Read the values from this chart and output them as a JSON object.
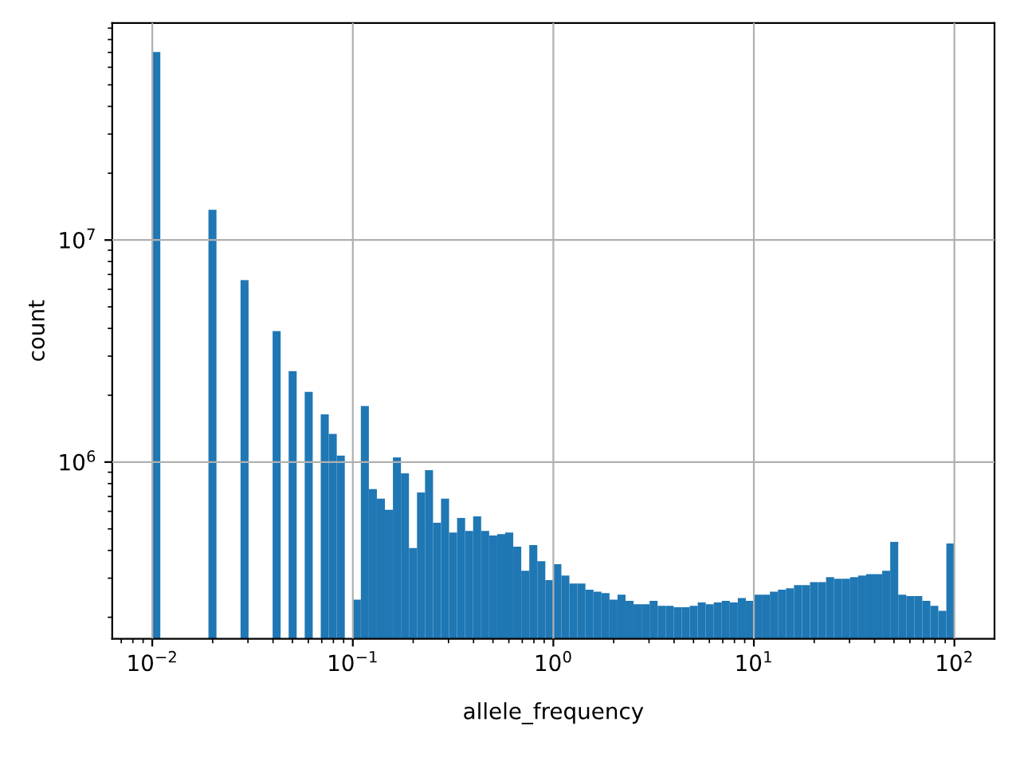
{
  "chart_data": {
    "type": "histogram",
    "xlabel": "allele_frequency",
    "ylabel": "count",
    "color": "#1f77b4",
    "log": "xy",
    "grid": true,
    "bins": [
      0.01,
      0.010965,
      0.012023,
      0.013183,
      0.014454,
      0.015849,
      0.017378,
      0.019055,
      0.020893,
      0.022909,
      0.025119,
      0.027542,
      0.0302,
      0.033113,
      0.036308,
      0.039811,
      0.043652,
      0.047863,
      0.052481,
      0.057544,
      0.063096,
      0.069183,
      0.075858,
      0.083176,
      0.091201,
      0.1,
      0.10965,
      0.12023,
      0.13183,
      0.14454,
      0.15849,
      0.17378,
      0.19055,
      0.20893,
      0.22909,
      0.25119,
      0.27542,
      0.302,
      0.33113,
      0.36308,
      0.39811,
      0.43652,
      0.47863,
      0.52481,
      0.57544,
      0.63096,
      0.69183,
      0.75858,
      0.83176,
      0.91201,
      1,
      1.0965,
      1.2023,
      1.3183,
      1.4454,
      1.5849,
      1.7378,
      1.9055,
      2.0893,
      2.2909,
      2.5119,
      2.7542,
      3.02,
      3.3113,
      3.6308,
      3.9811,
      4.3652,
      4.7863,
      5.2481,
      5.7544,
      6.3096,
      6.9183,
      7.5858,
      8.3176,
      9.1201,
      10,
      10.965,
      12.023,
      13.183,
      14.454,
      15.849,
      17.378,
      19.055,
      20.893,
      22.909,
      25.119,
      27.542,
      30.2,
      33.113,
      36.308,
      39.811,
      43.652,
      47.863,
      52.481,
      57.544,
      63.096,
      69.183,
      75.858,
      83.176,
      91.201,
      100
    ],
    "values": [
      70300000,
      null,
      null,
      null,
      null,
      null,
      null,
      13700000,
      null,
      null,
      null,
      6600000,
      null,
      null,
      null,
      3890000,
      null,
      2570000,
      null,
      2070000,
      null,
      1640000,
      1340000,
      1070000,
      null,
      240000,
      1790000,
      755000,
      684000,
      609000,
      1050000,
      890000,
      410000,
      730000,
      920000,
      533000,
      684000,
      482000,
      560000,
      490000,
      569000,
      490000,
      467000,
      474000,
      482000,
      416000,
      324000,
      423000,
      358000,
      294000,
      347000,
      308000,
      284000,
      284000,
      266000,
      261000,
      257000,
      240000,
      253000,
      237000,
      229000,
      229000,
      237000,
      225000,
      225000,
      222000,
      222000,
      225000,
      233000,
      229000,
      233000,
      237000,
      233000,
      244000,
      237000,
      253000,
      253000,
      261000,
      266000,
      270000,
      279000,
      279000,
      288000,
      288000,
      303000,
      298000,
      298000,
      303000,
      308000,
      313000,
      313000,
      324000,
      437000,
      253000,
      249000,
      249000,
      237000,
      225000,
      214000,
      430000
    ],
    "xlim": [
      0.00631,
      158.5
    ],
    "ylim": [
      160000,
      95000000
    ],
    "xticks": [
      {
        "value": 0.01,
        "label": "10$^{−2}$"
      },
      {
        "value": 0.1,
        "label": "10$^{−1}$"
      },
      {
        "value": 1,
        "label": "10$^{0}$"
      },
      {
        "value": 10,
        "label": "10$^{1}$"
      },
      {
        "value": 100,
        "label": "10$^{2}$"
      }
    ],
    "yticks": [
      {
        "value": 1000000,
        "label": "10$^{6}$"
      },
      {
        "value": 10000000,
        "label": "10$^{7}$"
      }
    ]
  }
}
